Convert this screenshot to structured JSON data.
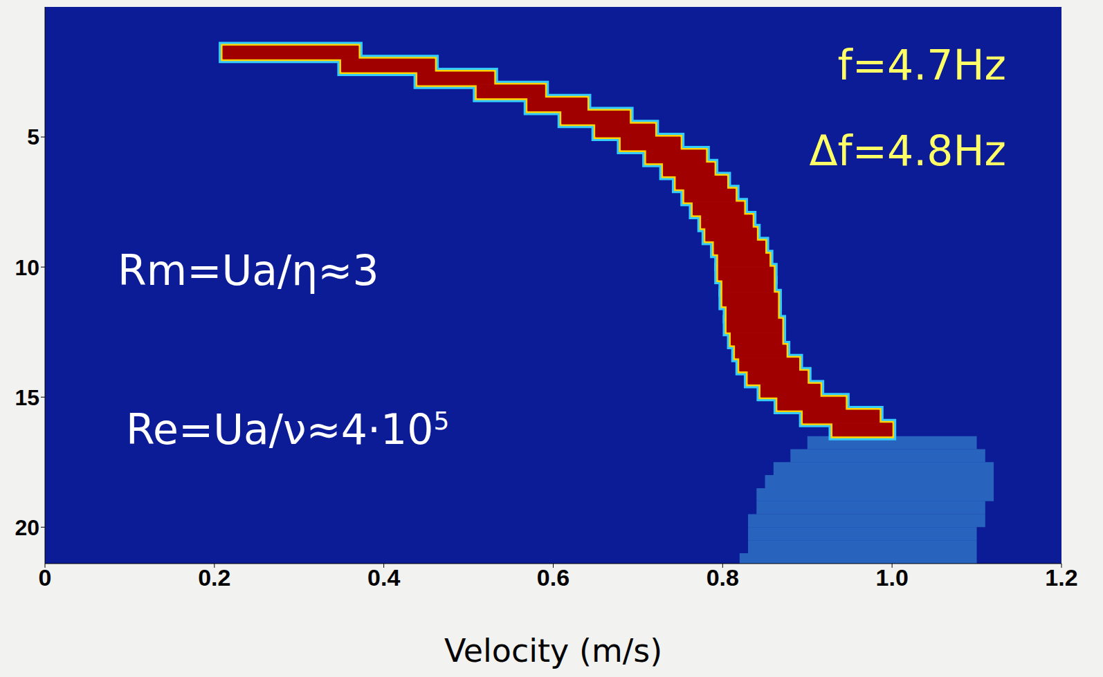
{
  "chart_data": {
    "type": "heatmap",
    "x_label": "Velocity (m/s)",
    "xlim": [
      0,
      1.2
    ],
    "xticks": [
      0,
      0.2,
      0.4,
      0.6,
      0.8,
      {
        "value": 1,
        "label": "1.0"
      },
      1.2
    ],
    "ylim": [
      0,
      21.4
    ],
    "yticks": [
      5,
      10,
      15,
      20
    ],
    "band": {
      "color": "#a00000",
      "y_edges": [
        1.5,
        2,
        2.5,
        3,
        3.5,
        4,
        4.5,
        5,
        5.5,
        6,
        6.5,
        7,
        7.5,
        8,
        8.5,
        9,
        9.5,
        10,
        10.5,
        11,
        11.5,
        12,
        12.5,
        13,
        13.5,
        14,
        14.5,
        15,
        15.5,
        16,
        16.5
      ],
      "lo": [
        0.21,
        0.35,
        0.44,
        0.51,
        0.57,
        0.61,
        0.65,
        0.68,
        0.71,
        0.73,
        0.745,
        0.755,
        0.765,
        0.775,
        0.78,
        0.79,
        0.795,
        0.795,
        0.8,
        0.8,
        0.805,
        0.805,
        0.81,
        0.815,
        0.82,
        0.83,
        0.845,
        0.865,
        0.895,
        0.93
      ],
      "hi": [
        0.37,
        0.46,
        0.53,
        0.59,
        0.64,
        0.69,
        0.72,
        0.75,
        0.78,
        0.79,
        0.805,
        0.815,
        0.825,
        0.835,
        0.84,
        0.85,
        0.855,
        0.86,
        0.86,
        0.865,
        0.865,
        0.87,
        0.87,
        0.875,
        0.89,
        0.9,
        0.915,
        0.945,
        0.985,
        1.0
      ]
    },
    "diffuse": {
      "color": "#3f9fe0",
      "y_edges": [
        16.5,
        17,
        17.5,
        18,
        18.5,
        19,
        19.5,
        20,
        20.5,
        21,
        21.4
      ],
      "lo": [
        0.9,
        0.88,
        0.86,
        0.85,
        0.84,
        0.84,
        0.83,
        0.83,
        0.83,
        0.82
      ],
      "hi": [
        1.1,
        1.11,
        1.12,
        1.12,
        1.12,
        1.11,
        1.11,
        1.1,
        1.1,
        1.1
      ]
    },
    "annotations": [
      {
        "text": "f=4.7Hz",
        "color": "#ffff66"
      },
      {
        "text": "Δf=4.8Hz",
        "color": "#ffff66"
      },
      {
        "text": "Rm=Ua/η≈3",
        "color": "#ffffff"
      },
      {
        "text": "Re=Ua/ν≈4·10",
        "superscript": "5",
        "color": "#ffffff"
      }
    ]
  }
}
